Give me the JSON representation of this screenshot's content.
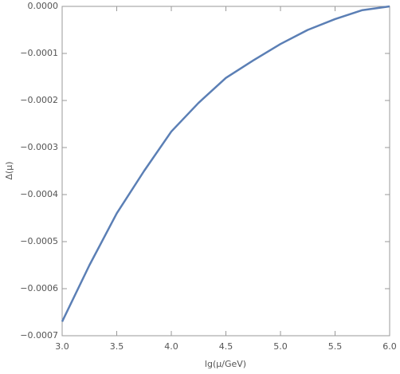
{
  "chart_data": {
    "type": "line",
    "x_label": "lg(μ/GeV)",
    "y_label": "Δ(μ)",
    "x": [
      3.0,
      3.25,
      3.5,
      3.75,
      4.0,
      4.25,
      4.5,
      4.75,
      5.0,
      5.25,
      5.5,
      5.75,
      6.0
    ],
    "series": [
      {
        "color": "#5b7fb5",
        "values": [
          -0.00067,
          -0.00055,
          -0.00044,
          -0.00035,
          -0.000266,
          -0.000205,
          -0.000152,
          -0.000115,
          -8e-05,
          -5e-05,
          -2.7e-05,
          -8e-06,
          0
        ]
      }
    ],
    "xlim": [
      3,
      6
    ],
    "ylim": [
      -0.0007,
      0
    ],
    "xticks": [
      {
        "value": 3,
        "label": "3.0"
      },
      {
        "value": 3.5,
        "label": "3.5"
      },
      {
        "value": 4,
        "label": "4.0"
      },
      {
        "value": 4.5,
        "label": "4.5"
      },
      {
        "value": 5,
        "label": "5.0"
      },
      {
        "value": 5.5,
        "label": "5.5"
      },
      {
        "value": 6,
        "label": "6.0"
      }
    ],
    "yticks": [
      {
        "value": 0,
        "label": "0.0000"
      },
      {
        "value": -0.0001,
        "label": "−0.0001"
      },
      {
        "value": -0.0002,
        "label": "−0.0002"
      },
      {
        "value": -0.0003,
        "label": "−0.0003"
      },
      {
        "value": -0.0004,
        "label": "−0.0004"
      },
      {
        "value": -0.0005,
        "label": "−0.0005"
      },
      {
        "value": -0.0006,
        "label": "−0.0006"
      },
      {
        "value": -0.0007,
        "label": "−0.0007"
      }
    ]
  }
}
